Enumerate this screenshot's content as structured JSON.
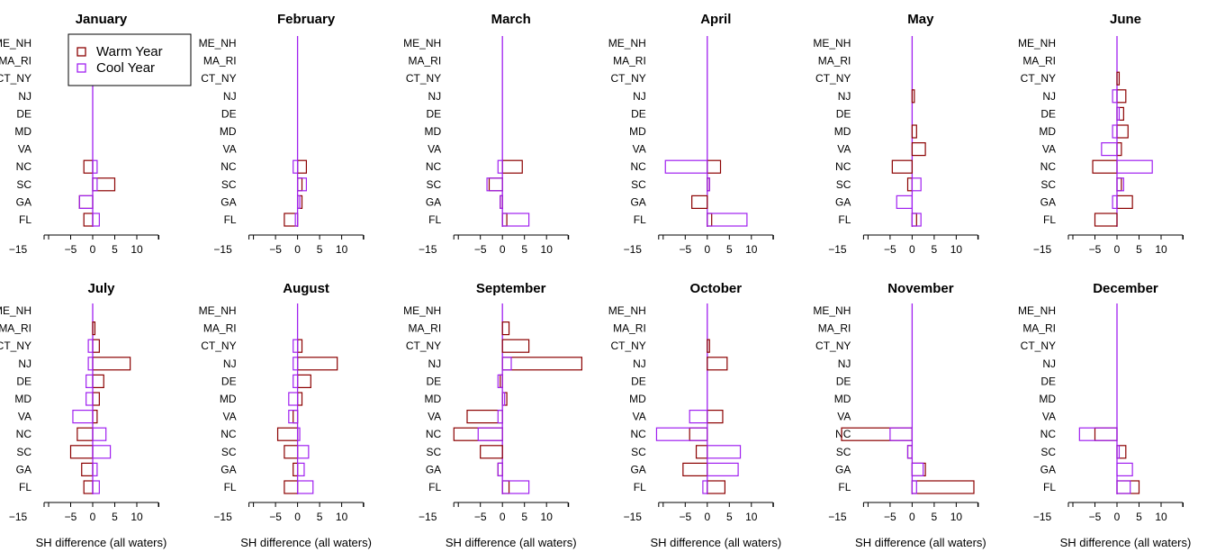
{
  "chart_data": {
    "type": "bar",
    "layout": "horizontal-paired-bars-small-multiples",
    "categories": [
      "ME_NH",
      "MA_RI",
      "CT_NY",
      "NJ",
      "DE",
      "MD",
      "VA",
      "NC",
      "SC",
      "GA",
      "FL"
    ],
    "xlim": [
      -15,
      15
    ],
    "xticks": [
      -15,
      -5,
      0,
      5,
      10
    ],
    "xlabel": "SH difference (all waters)",
    "legend": {
      "placement": "top-left (first panel)",
      "entries": [
        {
          "name": "Warm Year",
          "color": "#8b0000"
        },
        {
          "name": "Cool Year",
          "color": "#a020f0"
        }
      ]
    },
    "colors": {
      "warm": "#8b0000",
      "cool": "#a020f0"
    },
    "panels": [
      {
        "title": "January",
        "warm": [
          0,
          0,
          0,
          0,
          0,
          0,
          0,
          -2,
          5,
          -3,
          -2
        ],
        "cool": [
          0,
          0,
          0,
          0,
          0,
          0,
          0,
          1,
          1,
          -3,
          1.5
        ]
      },
      {
        "title": "February",
        "warm": [
          0,
          0,
          0,
          0,
          0,
          0,
          0,
          2,
          1,
          1,
          -3
        ],
        "cool": [
          0,
          0,
          0,
          0,
          0,
          0,
          0,
          -1,
          2,
          0.5,
          -0.5
        ]
      },
      {
        "title": "March",
        "warm": [
          0,
          0,
          0,
          0,
          0,
          0,
          0,
          4.5,
          -3,
          -0.5,
          1
        ],
        "cool": [
          0,
          0,
          0,
          0,
          0,
          0,
          0,
          -1,
          -3.5,
          -0.5,
          6
        ]
      },
      {
        "title": "April",
        "warm": [
          0,
          0,
          0,
          0,
          0,
          0,
          0,
          3,
          0.5,
          -3.5,
          1
        ],
        "cool": [
          0,
          0,
          0,
          0,
          0,
          0,
          0,
          -9.5,
          0.5,
          0,
          9
        ]
      },
      {
        "title": "May",
        "warm": [
          0,
          0,
          0,
          0.5,
          0,
          1,
          3,
          -4.5,
          -1,
          0,
          1
        ],
        "cool": [
          0,
          0,
          0,
          0,
          0,
          0,
          0,
          0,
          2,
          -3.5,
          2
        ]
      },
      {
        "title": "June",
        "warm": [
          0,
          0,
          0.5,
          2,
          1.5,
          2.5,
          1,
          -5.5,
          1,
          3.5,
          -5
        ],
        "cool": [
          0,
          0,
          0,
          -1,
          0.5,
          -1,
          -3.5,
          8,
          1.5,
          -1,
          0
        ]
      },
      {
        "title": "July",
        "warm": [
          0,
          0.5,
          1.5,
          8.5,
          2.5,
          1.5,
          1,
          -3.5,
          -5,
          -2.5,
          -2
        ],
        "cool": [
          0,
          0,
          -1,
          -1,
          -1.5,
          -1.5,
          -4.5,
          3,
          4,
          1,
          1.5
        ]
      },
      {
        "title": "August",
        "warm": [
          0,
          0,
          1,
          9,
          3,
          1,
          -1,
          -4.5,
          -3,
          -1,
          -3
        ],
        "cool": [
          0,
          0,
          -1,
          -1,
          -1,
          -2,
          -2,
          0.5,
          2.5,
          1.5,
          3.5
        ]
      },
      {
        "title": "September",
        "warm": [
          0,
          1.5,
          6,
          18,
          -0.5,
          1,
          -8,
          -11,
          -5,
          -1,
          1.5
        ],
        "cool": [
          0,
          0,
          0,
          2,
          -1,
          0.5,
          -1,
          -5.5,
          0,
          -1,
          6
        ]
      },
      {
        "title": "October",
        "warm": [
          0,
          0,
          0.5,
          4.5,
          0,
          0,
          3.5,
          -4,
          -2.5,
          -5.5,
          4
        ],
        "cool": [
          0,
          0,
          0,
          0,
          0,
          0,
          -4,
          -11.5,
          7.5,
          7,
          -1
        ]
      },
      {
        "title": "November",
        "warm": [
          0,
          0,
          0,
          0,
          0,
          0,
          0,
          -16,
          -1,
          3,
          14
        ],
        "cool": [
          0,
          0,
          0,
          0,
          0,
          0,
          0,
          -5,
          -1,
          2.5,
          1
        ]
      },
      {
        "title": "December",
        "warm": [
          0,
          0,
          0,
          0,
          0,
          0,
          0,
          -5,
          2,
          0,
          5
        ],
        "cool": [
          0,
          0,
          0,
          0,
          0,
          0,
          0,
          -8.5,
          0.5,
          3.5,
          3
        ]
      }
    ]
  }
}
